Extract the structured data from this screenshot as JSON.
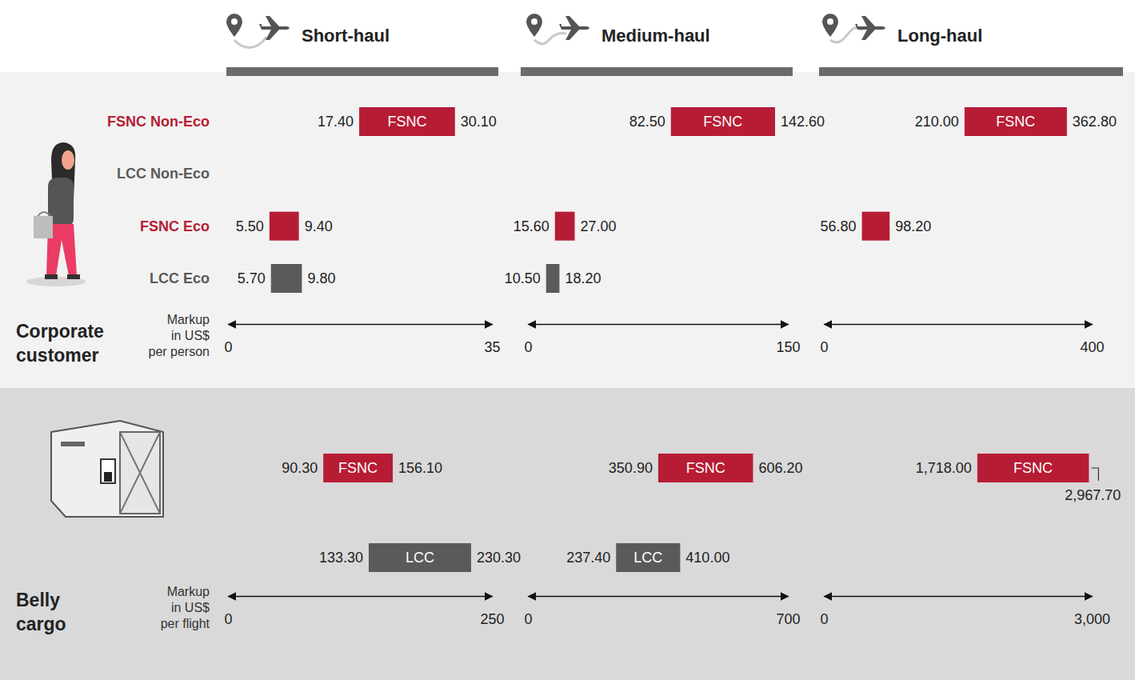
{
  "panel_titles": [
    "Short-haul",
    "Medium-haul",
    "Long-haul"
  ],
  "chart_data": [
    {
      "type": "range_bar",
      "orientation": "horizontal",
      "title": "Corporate customer",
      "xlabel": "Markup in US$ per person",
      "categories": [
        "FSNC Non-Eco",
        "LCC Non-Eco",
        "FSNC Eco",
        "LCC Eco"
      ],
      "colors": [
        "#b71c35",
        "#5a5a5a",
        "#b71c35",
        "#5a5a5a"
      ],
      "data_labels": true,
      "panels": [
        {
          "xlim": [
            0,
            35
          ],
          "xticks": [
            0,
            35
          ],
          "values": [
            [
              17.4,
              30.1
            ],
            null,
            [
              5.5,
              9.4
            ],
            [
              5.7,
              9.8
            ]
          ],
          "value_labels": [
            [
              "17.40",
              "30.10"
            ],
            null,
            [
              "5.50",
              "9.40"
            ],
            [
              "5.70",
              "9.80"
            ]
          ],
          "annotations": [
            "FSNC",
            null,
            null,
            null
          ]
        },
        {
          "xlim": [
            0,
            150
          ],
          "xticks": [
            0,
            150
          ],
          "values": [
            [
              82.5,
              142.6
            ],
            null,
            [
              15.6,
              27
            ],
            [
              10.5,
              18.2
            ]
          ],
          "value_labels": [
            [
              "82.50",
              "142.60"
            ],
            null,
            [
              "15.60",
              "27.00"
            ],
            [
              "10.50",
              "18.20"
            ]
          ],
          "annotations": [
            "FSNC",
            null,
            null,
            null
          ]
        },
        {
          "xlim": [
            0,
            400
          ],
          "xticks": [
            0,
            400
          ],
          "values": [
            [
              210,
              362.8
            ],
            null,
            [
              56.8,
              98.2
            ],
            null
          ],
          "value_labels": [
            [
              "210.00",
              "362.80"
            ],
            null,
            [
              "56.80",
              "98.20"
            ],
            null
          ],
          "annotations": [
            "FSNC",
            null,
            null,
            null
          ]
        }
      ]
    },
    {
      "type": "range_bar",
      "orientation": "horizontal",
      "title": "Belly cargo",
      "xlabel": "Markup in US$ per flight",
      "categories": [
        "FSNC",
        "LCC"
      ],
      "colors": [
        "#b71c35",
        "#5a5a5a"
      ],
      "data_labels": true,
      "tick_labels": "x",
      "panels": [
        {
          "xlim": [
            0,
            250
          ],
          "xticks": [
            0,
            250
          ],
          "values": [
            [
              90.3,
              156.1
            ],
            [
              133.3,
              230.3
            ]
          ],
          "value_labels": [
            [
              "90.30",
              "156.10"
            ],
            [
              "133.30",
              "230.30"
            ]
          ]
        },
        {
          "xlim": [
            0,
            700
          ],
          "xticks": [
            0,
            700
          ],
          "values": [
            [
              350.9,
              606.2
            ],
            [
              237.4,
              410
            ]
          ],
          "value_labels": [
            [
              "350.90",
              "606.20"
            ],
            [
              "237.40",
              "410.00"
            ]
          ]
        },
        {
          "xlim": [
            0,
            3000
          ],
          "xticks": [
            0,
            {
              "value": 3000,
              "label": "3,000"
            }
          ],
          "values": [
            [
              1718,
              2967.7
            ],
            null
          ],
          "value_labels": [
            [
              "1,718.00",
              "2,967.70"
            ],
            null
          ]
        }
      ]
    }
  ]
}
